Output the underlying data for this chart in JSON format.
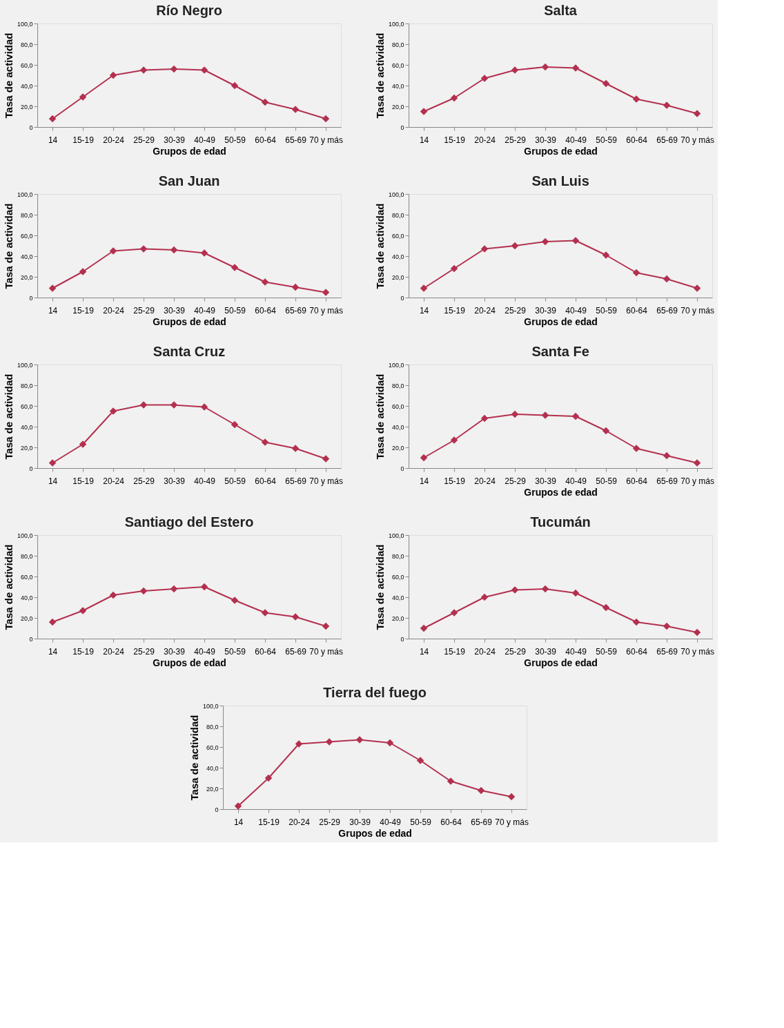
{
  "chart_data": [
    {
      "type": "line",
      "title": "Río Negro",
      "xlabel": "Grupos de edad",
      "ylabel": "Tasa de actividad",
      "categories": [
        "14",
        "15-19",
        "20-24",
        "25-29",
        "30-39",
        "40-49",
        "50-59",
        "60-64",
        "65-69",
        "70 y más"
      ],
      "series": [
        {
          "color": "#b3304f",
          "values": [
            8,
            29,
            50,
            55,
            56,
            55,
            40,
            24,
            17,
            8
          ]
        }
      ],
      "ylim": [
        0,
        100
      ],
      "yticks": [
        0,
        {
          "value": 20,
          "label": "20,0"
        },
        {
          "value": 40,
          "label": "40,0"
        },
        {
          "value": 60,
          "label": "60,0"
        },
        {
          "value": 80,
          "label": "80,0"
        },
        {
          "value": 100,
          "label": "100,0"
        }
      ],
      "marker": "diamond",
      "grid": false
    },
    {
      "type": "line",
      "title": "Salta",
      "xlabel": "Grupos de edad",
      "ylabel": "Tasa de actividad",
      "categories": [
        "14",
        "15-19",
        "20-24",
        "25-29",
        "30-39",
        "40-49",
        "50-59",
        "60-64",
        "65-69",
        "70 y más"
      ],
      "series": [
        {
          "color": "#b3304f",
          "values": [
            15,
            28,
            47,
            55,
            58,
            57,
            42,
            27,
            21,
            13
          ]
        }
      ],
      "ylim": [
        0,
        100
      ],
      "yticks": [
        0,
        {
          "value": 20,
          "label": "20,0"
        },
        {
          "value": 40,
          "label": "40,0"
        },
        {
          "value": 60,
          "label": "60,0"
        },
        {
          "value": 80,
          "label": "80,0"
        },
        {
          "value": 100,
          "label": "100,0"
        }
      ],
      "marker": "diamond",
      "grid": false
    },
    {
      "type": "line",
      "title": "San Juan",
      "xlabel": "Grupos de edad",
      "ylabel": "Tasa de actividad",
      "categories": [
        "14",
        "15-19",
        "20-24",
        "25-29",
        "30-39",
        "40-49",
        "50-59",
        "60-64",
        "65-69",
        "70 y más"
      ],
      "series": [
        {
          "color": "#b3304f",
          "values": [
            9,
            25,
            45,
            47,
            46,
            43,
            29,
            15,
            10,
            5
          ]
        }
      ],
      "ylim": [
        0,
        100
      ],
      "yticks": [
        0,
        {
          "value": 20,
          "label": "20,0"
        },
        {
          "value": 40,
          "label": "40,0"
        },
        {
          "value": 60,
          "label": "60,0"
        },
        {
          "value": 80,
          "label": "80,0"
        },
        {
          "value": 100,
          "label": "100,0"
        }
      ],
      "marker": "diamond",
      "grid": false
    },
    {
      "type": "line",
      "title": "San Luis",
      "xlabel": "Grupos de edad",
      "ylabel": "Tasa de actividad",
      "categories": [
        "14",
        "15-19",
        "20-24",
        "25-29",
        "30-39",
        "40-49",
        "50-59",
        "60-64",
        "65-69",
        "70 y más"
      ],
      "series": [
        {
          "color": "#b3304f",
          "values": [
            9,
            28,
            47,
            50,
            54,
            55,
            41,
            24,
            18,
            9
          ]
        }
      ],
      "ylim": [
        0,
        100
      ],
      "yticks": [
        0,
        {
          "value": 20,
          "label": "20,0"
        },
        {
          "value": 40,
          "label": "40,0"
        },
        {
          "value": 60,
          "label": "60,0"
        },
        {
          "value": 80,
          "label": "80,0"
        },
        {
          "value": 100,
          "label": "100,0"
        }
      ],
      "marker": "diamond",
      "grid": false
    },
    {
      "type": "line",
      "title": "Santa Cruz",
      "ylabel": "Tasa de actividad",
      "categories": [
        "14",
        "15-19",
        "20-24",
        "25-29",
        "30-39",
        "40-49",
        "50-59",
        "60-64",
        "65-69",
        "70 y más"
      ],
      "series": [
        {
          "color": "#b3304f",
          "values": [
            5,
            23,
            55,
            61,
            61,
            59,
            42,
            25,
            19,
            9
          ]
        }
      ],
      "ylim": [
        0,
        100
      ],
      "yticks": [
        0,
        {
          "value": 20,
          "label": "20,0"
        },
        {
          "value": 40,
          "label": "40,0"
        },
        {
          "value": 60,
          "label": "60,0"
        },
        {
          "value": 80,
          "label": "80,0"
        },
        {
          "value": 100,
          "label": "100,0"
        }
      ],
      "marker": "diamond",
      "grid": false
    },
    {
      "type": "line",
      "title": "Santa Fe",
      "xlabel": "Grupos de edad",
      "ylabel": "Tasa de actividad",
      "categories": [
        "14",
        "15-19",
        "20-24",
        "25-29",
        "30-39",
        "40-49",
        "50-59",
        "60-64",
        "65-69",
        "70 y más"
      ],
      "series": [
        {
          "color": "#b3304f",
          "values": [
            10,
            27,
            48,
            52,
            51,
            50,
            36,
            19,
            12,
            5
          ]
        }
      ],
      "ylim": [
        0,
        100
      ],
      "yticks": [
        0,
        {
          "value": 20,
          "label": "20,0"
        },
        {
          "value": 40,
          "label": "40,0"
        },
        {
          "value": 60,
          "label": "60,0"
        },
        {
          "value": 80,
          "label": "80,0"
        },
        {
          "value": 100,
          "label": "100,0"
        }
      ],
      "marker": "diamond",
      "grid": false
    },
    {
      "type": "line",
      "title": "Santiago del Estero",
      "xlabel": "Grupos de edad",
      "ylabel": "Tasa de actividad",
      "categories": [
        "14",
        "15-19",
        "20-24",
        "25-29",
        "30-39",
        "40-49",
        "50-59",
        "60-64",
        "65-69",
        "70 y más"
      ],
      "series": [
        {
          "color": "#b3304f",
          "values": [
            16,
            27,
            42,
            46,
            48,
            50,
            37,
            25,
            21,
            12
          ]
        }
      ],
      "ylim": [
        0,
        100
      ],
      "yticks": [
        0,
        {
          "value": 20,
          "label": "20,0"
        },
        {
          "value": 40,
          "label": "40,0"
        },
        {
          "value": 60,
          "label": "60,0"
        },
        {
          "value": 80,
          "label": "80,0"
        },
        {
          "value": 100,
          "label": "100,0"
        }
      ],
      "marker": "diamond",
      "grid": false
    },
    {
      "type": "line",
      "title": "Tucumán",
      "xlabel": "Grupos de edad",
      "ylabel": "Tasa de actividad",
      "categories": [
        "14",
        "15-19",
        "20-24",
        "25-29",
        "30-39",
        "40-49",
        "50-59",
        "60-64",
        "65-69",
        "70 y más"
      ],
      "series": [
        {
          "color": "#b3304f",
          "values": [
            10,
            25,
            40,
            47,
            48,
            44,
            30,
            16,
            12,
            6
          ]
        }
      ],
      "ylim": [
        0,
        100
      ],
      "yticks": [
        0,
        {
          "value": 20,
          "label": "20,0"
        },
        {
          "value": 40,
          "label": "40,0"
        },
        {
          "value": 60,
          "label": "60,0"
        },
        {
          "value": 80,
          "label": "80,0"
        },
        {
          "value": 100,
          "label": "100,0"
        }
      ],
      "marker": "diamond",
      "grid": false
    },
    {
      "type": "line",
      "title": "Tierra del fuego",
      "xlabel": "Grupos de edad",
      "ylabel": "Tasa de actividad",
      "categories": [
        "14",
        "15-19",
        "20-24",
        "25-29",
        "30-39",
        "40-49",
        "50-59",
        "60-64",
        "65-69",
        "70 y más"
      ],
      "series": [
        {
          "color": "#b3304f",
          "values": [
            3,
            30,
            63,
            65,
            67,
            64,
            47,
            27,
            18,
            12
          ]
        }
      ],
      "ylim": [
        0,
        100
      ],
      "yticks": [
        0,
        {
          "value": 20,
          "label": "20,0"
        },
        {
          "value": 40,
          "label": "40,0"
        },
        {
          "value": 60,
          "label": "60,0"
        },
        {
          "value": 80,
          "label": "80,0"
        },
        {
          "value": 100,
          "label": "100,0"
        }
      ],
      "marker": "diamond",
      "grid": false
    }
  ]
}
